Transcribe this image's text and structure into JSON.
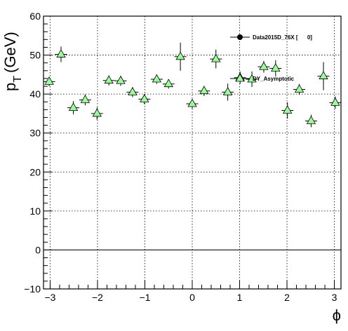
{
  "chart_data": {
    "type": "scatter",
    "title": "",
    "xlabel": "ϕ",
    "ylabel_main": "p",
    "ylabel_sub": "T",
    "ylabel_unit": "(GeV)",
    "xlim": [
      -3.14,
      3.14
    ],
    "ylim": [
      -10,
      60
    ],
    "xticks": [
      -3,
      -2,
      -1,
      0,
      1,
      2,
      3
    ],
    "yticks": [
      -10,
      0,
      10,
      20,
      30,
      40,
      50,
      60
    ],
    "xtick_labels": [
      "−3",
      "−2",
      "−1",
      "0",
      "1",
      "2",
      "3"
    ],
    "ytick_labels": [
      "−10",
      "0",
      "10",
      "20",
      "30",
      "40",
      "50",
      "60"
    ],
    "grid": true,
    "reference_line_y": 0,
    "legend_position": "top-right",
    "series": [
      {
        "name": "Data2015D_76X [      0]",
        "marker": "circle",
        "color": "#000000",
        "x": [],
        "y": []
      },
      {
        "name": "DY_Asymptotic",
        "marker": "triangle",
        "color": "#99ff99",
        "x_halfwidth": 0.126,
        "x": [
          -3.02,
          -2.77,
          -2.51,
          -2.26,
          -2.01,
          -1.76,
          -1.51,
          -1.26,
          -1.01,
          -0.75,
          -0.5,
          -0.25,
          0.0,
          0.25,
          0.5,
          0.75,
          1.01,
          1.26,
          1.51,
          1.76,
          2.01,
          2.26,
          2.51,
          2.77,
          3.02
        ],
        "y": [
          43.2,
          50.2,
          36.5,
          38.5,
          35.0,
          43.5,
          43.4,
          40.5,
          38.7,
          43.8,
          42.6,
          49.6,
          37.5,
          40.8,
          49.0,
          40.5,
          44.2,
          43.8,
          47.0,
          46.6,
          35.8,
          41.2,
          33.1,
          44.6,
          37.8
        ],
        "yerr": [
          1.2,
          2.0,
          1.7,
          1.4,
          1.6,
          1.3,
          1.3,
          1.3,
          1.3,
          1.2,
          1.2,
          3.6,
          1.2,
          1.3,
          2.4,
          2.2,
          1.6,
          2.0,
          1.5,
          2.1,
          2.1,
          1.4,
          1.6,
          3.6,
          1.6
        ]
      }
    ]
  }
}
